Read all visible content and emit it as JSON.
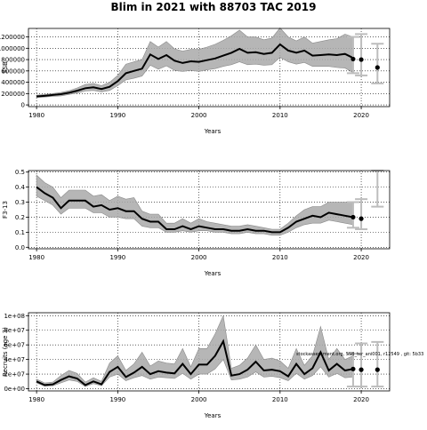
{
  "title": "Blim in 2021 with 88703 TAC 2019",
  "footnote": "stockassessment.org, SSB_ter_ani001, r12549 , git: 5b33",
  "chart_data": [
    {
      "type": "line",
      "panel": "ssb",
      "xlabel": "Years",
      "ylabel": "SSB",
      "xlim": [
        1979,
        2023.5
      ],
      "ylim": [
        -30000,
        1350000
      ],
      "xticks": [
        1980,
        1990,
        2000,
        2010,
        2020
      ],
      "yticks": [
        0,
        200000,
        400000,
        600000,
        800000,
        1000000,
        1200000
      ],
      "ytick_labels": [
        "0",
        "200000",
        "400000",
        "600000",
        "800000",
        "1000000",
        "1200000"
      ],
      "grid": true,
      "x": [
        1980,
        1981,
        1982,
        1983,
        1984,
        1985,
        1986,
        1987,
        1988,
        1989,
        1990,
        1991,
        1992,
        1993,
        1994,
        1995,
        1996,
        1997,
        1998,
        1999,
        2000,
        2001,
        2002,
        2003,
        2004,
        2005,
        2006,
        2007,
        2008,
        2009,
        2010,
        2011,
        2012,
        2013,
        2014,
        2015,
        2016,
        2017,
        2018,
        2019
      ],
      "y": [
        150000,
        160000,
        175000,
        190000,
        215000,
        250000,
        295000,
        310000,
        280000,
        320000,
        420000,
        560000,
        600000,
        640000,
        890000,
        810000,
        880000,
        780000,
        740000,
        770000,
        760000,
        790000,
        820000,
        870000,
        920000,
        990000,
        920000,
        930000,
        900000,
        920000,
        1070000,
        960000,
        920000,
        960000,
        870000,
        880000,
        890000,
        880000,
        900000,
        830000
      ],
      "upper": [
        170000,
        185000,
        200000,
        220000,
        250000,
        300000,
        360000,
        380000,
        340000,
        400000,
        520000,
        720000,
        760000,
        800000,
        1120000,
        1020000,
        1120000,
        990000,
        950000,
        980000,
        980000,
        1020000,
        1070000,
        1140000,
        1220000,
        1320000,
        1200000,
        1200000,
        1150000,
        1180000,
        1360000,
        1200000,
        1130000,
        1200000,
        1090000,
        1120000,
        1150000,
        1170000,
        1250000,
        1200000
      ],
      "lower": [
        130000,
        140000,
        150000,
        160000,
        185000,
        210000,
        245000,
        255000,
        230000,
        255000,
        340000,
        440000,
        470000,
        510000,
        700000,
        630000,
        690000,
        610000,
        590000,
        610000,
        590000,
        620000,
        640000,
        680000,
        710000,
        760000,
        710000,
        720000,
        700000,
        710000,
        840000,
        760000,
        720000,
        750000,
        680000,
        680000,
        680000,
        660000,
        650000,
        570000
      ],
      "forecast": [
        {
          "year": 2019,
          "median": 810000,
          "lower": 560000,
          "upper": 1200000
        },
        {
          "year": 2020,
          "median": 800000,
          "lower": 520000,
          "upper": 1250000
        },
        {
          "year": 2022,
          "median": 660000,
          "lower": 380000,
          "upper": 1080000
        }
      ]
    },
    {
      "type": "line",
      "panel": "fbar",
      "xlabel": "Years",
      "ylabel": "F3-13",
      "xlim": [
        1979,
        2023.5
      ],
      "ylim": [
        -0.01,
        0.51
      ],
      "xticks": [
        1980,
        1990,
        2000,
        2010,
        2020
      ],
      "yticks": [
        0,
        0.1,
        0.2,
        0.3,
        0.4,
        0.5
      ],
      "ytick_labels": [
        "0.0",
        "0.1",
        "0.2",
        "0.3",
        "0.4",
        "0.5"
      ],
      "grid": true,
      "x": [
        1980,
        1981,
        1982,
        1983,
        1984,
        1985,
        1986,
        1987,
        1988,
        1989,
        1990,
        1991,
        1992,
        1993,
        1994,
        1995,
        1996,
        1997,
        1998,
        1999,
        2000,
        2001,
        2002,
        2003,
        2004,
        2005,
        2006,
        2007,
        2008,
        2009,
        2010,
        2011,
        2012,
        2013,
        2014,
        2015,
        2016,
        2017,
        2018,
        2019
      ],
      "y": [
        0.4,
        0.36,
        0.33,
        0.26,
        0.31,
        0.31,
        0.31,
        0.27,
        0.28,
        0.25,
        0.26,
        0.24,
        0.24,
        0.19,
        0.17,
        0.17,
        0.12,
        0.12,
        0.14,
        0.12,
        0.14,
        0.13,
        0.12,
        0.12,
        0.11,
        0.11,
        0.12,
        0.11,
        0.11,
        0.1,
        0.1,
        0.13,
        0.17,
        0.19,
        0.21,
        0.2,
        0.23,
        0.22,
        0.21,
        0.2
      ],
      "upper": [
        0.48,
        0.43,
        0.4,
        0.33,
        0.38,
        0.38,
        0.38,
        0.34,
        0.35,
        0.31,
        0.34,
        0.32,
        0.33,
        0.24,
        0.22,
        0.22,
        0.16,
        0.16,
        0.19,
        0.16,
        0.19,
        0.17,
        0.16,
        0.15,
        0.14,
        0.14,
        0.15,
        0.14,
        0.13,
        0.12,
        0.12,
        0.16,
        0.21,
        0.25,
        0.27,
        0.27,
        0.3,
        0.3,
        0.3,
        0.3
      ],
      "lower": [
        0.34,
        0.31,
        0.28,
        0.22,
        0.26,
        0.26,
        0.26,
        0.23,
        0.23,
        0.2,
        0.2,
        0.19,
        0.19,
        0.14,
        0.13,
        0.13,
        0.1,
        0.1,
        0.11,
        0.1,
        0.11,
        0.11,
        0.1,
        0.1,
        0.09,
        0.09,
        0.1,
        0.09,
        0.09,
        0.08,
        0.08,
        0.1,
        0.13,
        0.15,
        0.16,
        0.16,
        0.18,
        0.17,
        0.16,
        0.15
      ],
      "forecast": [
        {
          "year": 2019,
          "median": 0.2,
          "lower": 0.13,
          "upper": 0.3
        },
        {
          "year": 2020,
          "median": 0.19,
          "lower": 0.12,
          "upper": 0.32
        },
        {
          "year": 2022,
          "median": null,
          "lower": 0.27,
          "upper": 0.51
        }
      ]
    },
    {
      "type": "line",
      "panel": "recruits",
      "xlabel": "Years",
      "ylabel": "Recruits (age 3)",
      "xlim": [
        1979,
        2023.5
      ],
      "ylim": [
        -3000000,
        104000000
      ],
      "xticks": [
        1980,
        1990,
        2000,
        2010,
        2020
      ],
      "yticks": [
        0,
        20000000,
        40000000,
        60000000,
        80000000,
        100000000
      ],
      "ytick_labels": [
        "0e+00",
        "2e+07",
        "4e+07",
        "6e+07",
        "8e+07",
        "1e+08"
      ],
      "grid": true,
      "x": [
        1980,
        1981,
        1982,
        1983,
        1984,
        1985,
        1986,
        1987,
        1988,
        1989,
        1990,
        1991,
        1992,
        1993,
        1994,
        1995,
        1996,
        1997,
        1998,
        1999,
        2000,
        2001,
        2002,
        2003,
        2004,
        2005,
        2006,
        2007,
        2008,
        2009,
        2010,
        2011,
        2012,
        2013,
        2014,
        2015,
        2016,
        2017,
        2018,
        2019
      ],
      "y": [
        10000000,
        5000000,
        6000000,
        12000000,
        17000000,
        14000000,
        5000000,
        10000000,
        6000000,
        23000000,
        30000000,
        16000000,
        22000000,
        30000000,
        20000000,
        24000000,
        22000000,
        21000000,
        34000000,
        20000000,
        33000000,
        33000000,
        45000000,
        65000000,
        18000000,
        20000000,
        26000000,
        37000000,
        25000000,
        26000000,
        24000000,
        17000000,
        34000000,
        20000000,
        28000000,
        50000000,
        25000000,
        34000000,
        25000000,
        27000000
      ],
      "upper": [
        13000000,
        8000000,
        9000000,
        18000000,
        25000000,
        21000000,
        9000000,
        15000000,
        10000000,
        35000000,
        45000000,
        25000000,
        34000000,
        50000000,
        31000000,
        38000000,
        35000000,
        34000000,
        55000000,
        30000000,
        55000000,
        55000000,
        75000000,
        100000000,
        28000000,
        32000000,
        42000000,
        60000000,
        40000000,
        42000000,
        38000000,
        28000000,
        55000000,
        32000000,
        45000000,
        85000000,
        40000000,
        55000000,
        40000000,
        45000000
      ],
      "lower": [
        8000000,
        3500000,
        4000000,
        8000000,
        12000000,
        10000000,
        3000000,
        7000000,
        4000000,
        16000000,
        20000000,
        11000000,
        15000000,
        18000000,
        13000000,
        16000000,
        15000000,
        14000000,
        21000000,
        13000000,
        20000000,
        20000000,
        27000000,
        40000000,
        12000000,
        13000000,
        16000000,
        23000000,
        16000000,
        17000000,
        15000000,
        11000000,
        21000000,
        13000000,
        18000000,
        30000000,
        16000000,
        21000000,
        15000000,
        16000000
      ],
      "forecast": [
        {
          "year": 2019,
          "median": 27000000,
          "lower": 3000000,
          "upper": 48000000
        },
        {
          "year": 2020,
          "median": 26000000,
          "lower": 3000000,
          "upper": 62000000
        },
        {
          "year": 2022,
          "median": 26000000,
          "lower": 3000000,
          "upper": 64000000
        }
      ]
    }
  ]
}
